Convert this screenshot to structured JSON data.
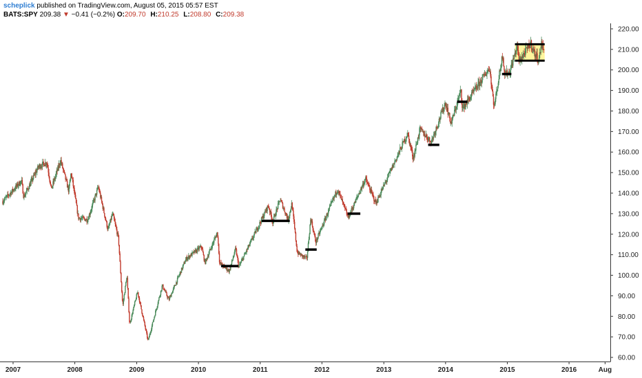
{
  "header": {
    "author": "scheplick",
    "published_text": "published on TradingView.com, August 05, 2015 05:57 EST",
    "symbol": "BATS:SPY",
    "last": "209.38",
    "change_arrow": "▼",
    "change": "−0.41 (−0.2%)",
    "ohlc": [
      {
        "key": "O:",
        "value": "209.70"
      },
      {
        "key": "H:",
        "value": "210.25"
      },
      {
        "key": "L:",
        "value": "208.80"
      },
      {
        "key": "C:",
        "value": "209.38"
      }
    ]
  },
  "colors": {
    "up": "#4a8a5a",
    "down": "#c0392b",
    "level_line": "#000000",
    "box_fill": "#fff59d",
    "axis": "#333333",
    "author": "#2d7dd2"
  },
  "chart_data": {
    "type": "candlestick",
    "title": "",
    "xlabel": "",
    "ylabel": "",
    "x_range": [
      "2006-11-01",
      "2016-09-01"
    ],
    "ylim": [
      58,
      222
    ],
    "y_axis_side": "right",
    "y_ticks": [
      "60.00",
      "70.00",
      "80.00",
      "90.00",
      "100.00",
      "110.00",
      "120.00",
      "130.00",
      "140.00",
      "150.00",
      "160.00",
      "170.00",
      "180.00",
      "190.00",
      "200.00",
      "210.00",
      "220.00"
    ],
    "x_ticks": [
      {
        "label": "2007",
        "date": "2007-01-01"
      },
      {
        "label": "2008",
        "date": "2008-01-01"
      },
      {
        "label": "2009",
        "date": "2009-01-01"
      },
      {
        "label": "2010",
        "date": "2010-01-01"
      },
      {
        "label": "2011",
        "date": "2011-01-01"
      },
      {
        "label": "2012",
        "date": "2012-01-01"
      },
      {
        "label": "2013",
        "date": "2013-01-01"
      },
      {
        "label": "2014",
        "date": "2014-01-01"
      },
      {
        "label": "2015",
        "date": "2015-01-01"
      },
      {
        "label": "2016",
        "date": "2016-01-01"
      },
      {
        "label": "Aug",
        "date": "2016-08-01"
      }
    ],
    "price_path": [
      {
        "date": "2006-11-01",
        "close": 136
      },
      {
        "date": "2007-02-20",
        "close": 146
      },
      {
        "date": "2007-03-05",
        "close": 138
      },
      {
        "date": "2007-06-01",
        "close": 153
      },
      {
        "date": "2007-07-20",
        "close": 155
      },
      {
        "date": "2007-08-15",
        "close": 142
      },
      {
        "date": "2007-10-09",
        "close": 156
      },
      {
        "date": "2007-11-26",
        "close": 141
      },
      {
        "date": "2007-12-10",
        "close": 150
      },
      {
        "date": "2008-01-22",
        "close": 128
      },
      {
        "date": "2008-03-17",
        "close": 127
      },
      {
        "date": "2008-05-19",
        "close": 143
      },
      {
        "date": "2008-07-15",
        "close": 122
      },
      {
        "date": "2008-08-11",
        "close": 130
      },
      {
        "date": "2008-09-15",
        "close": 118
      },
      {
        "date": "2008-10-10",
        "close": 85
      },
      {
        "date": "2008-11-04",
        "close": 100
      },
      {
        "date": "2008-11-20",
        "close": 76
      },
      {
        "date": "2009-01-06",
        "close": 92
      },
      {
        "date": "2009-03-09",
        "close": 68
      },
      {
        "date": "2009-06-01",
        "close": 95
      },
      {
        "date": "2009-07-10",
        "close": 88
      },
      {
        "date": "2009-10-20",
        "close": 108
      },
      {
        "date": "2010-01-19",
        "close": 114
      },
      {
        "date": "2010-02-08",
        "close": 106
      },
      {
        "date": "2010-04-23",
        "close": 121
      },
      {
        "date": "2010-05-06",
        "close": 106
      },
      {
        "date": "2010-07-02",
        "close": 102
      },
      {
        "date": "2010-08-09",
        "close": 113
      },
      {
        "date": "2010-08-27",
        "close": 104
      },
      {
        "date": "2011-02-18",
        "close": 134
      },
      {
        "date": "2011-03-16",
        "close": 126
      },
      {
        "date": "2011-04-29",
        "close": 137
      },
      {
        "date": "2011-06-15",
        "close": 127
      },
      {
        "date": "2011-07-07",
        "close": 135
      },
      {
        "date": "2011-08-08",
        "close": 111
      },
      {
        "date": "2011-10-04",
        "close": 108
      },
      {
        "date": "2011-10-27",
        "close": 128
      },
      {
        "date": "2011-11-25",
        "close": 116
      },
      {
        "date": "2012-04-02",
        "close": 142
      },
      {
        "date": "2012-06-04",
        "close": 128
      },
      {
        "date": "2012-09-14",
        "close": 147
      },
      {
        "date": "2012-11-15",
        "close": 135
      },
      {
        "date": "2013-05-21",
        "close": 169
      },
      {
        "date": "2013-06-24",
        "close": 157
      },
      {
        "date": "2013-08-02",
        "close": 171
      },
      {
        "date": "2013-10-08",
        "close": 165
      },
      {
        "date": "2013-12-31",
        "close": 184
      },
      {
        "date": "2014-02-03",
        "close": 174
      },
      {
        "date": "2014-04-02",
        "close": 190
      },
      {
        "date": "2014-04-11",
        "close": 181
      },
      {
        "date": "2014-09-18",
        "close": 201
      },
      {
        "date": "2014-10-15",
        "close": 182
      },
      {
        "date": "2014-12-05",
        "close": 208
      },
      {
        "date": "2014-12-16",
        "close": 198
      },
      {
        "date": "2015-01-15",
        "close": 199
      },
      {
        "date": "2015-03-02",
        "close": 212
      },
      {
        "date": "2015-03-11",
        "close": 204
      },
      {
        "date": "2015-05-20",
        "close": 213
      },
      {
        "date": "2015-06-10",
        "close": 208
      },
      {
        "date": "2015-07-08",
        "close": 205
      },
      {
        "date": "2015-07-20",
        "close": 213
      },
      {
        "date": "2015-08-05",
        "close": 209.38
      }
    ],
    "support_levels": [
      {
        "start": "2010-05-15",
        "end": "2010-08-25",
        "price": 104.5
      },
      {
        "start": "2011-01-10",
        "end": "2011-06-25",
        "price": 126.5
      },
      {
        "start": "2011-09-25",
        "end": "2011-12-01",
        "price": 112.5
      },
      {
        "start": "2012-06-01",
        "end": "2012-08-15",
        "price": 130
      },
      {
        "start": "2013-09-20",
        "end": "2013-11-25",
        "price": 163.5
      },
      {
        "start": "2014-03-10",
        "end": "2014-05-10",
        "price": 184.5
      },
      {
        "start": "2014-12-01",
        "end": "2015-01-25",
        "price": 198
      }
    ],
    "range_box": {
      "start": "2015-02-15",
      "end": "2015-08-10",
      "low": 204.5,
      "high": 212.5
    }
  }
}
